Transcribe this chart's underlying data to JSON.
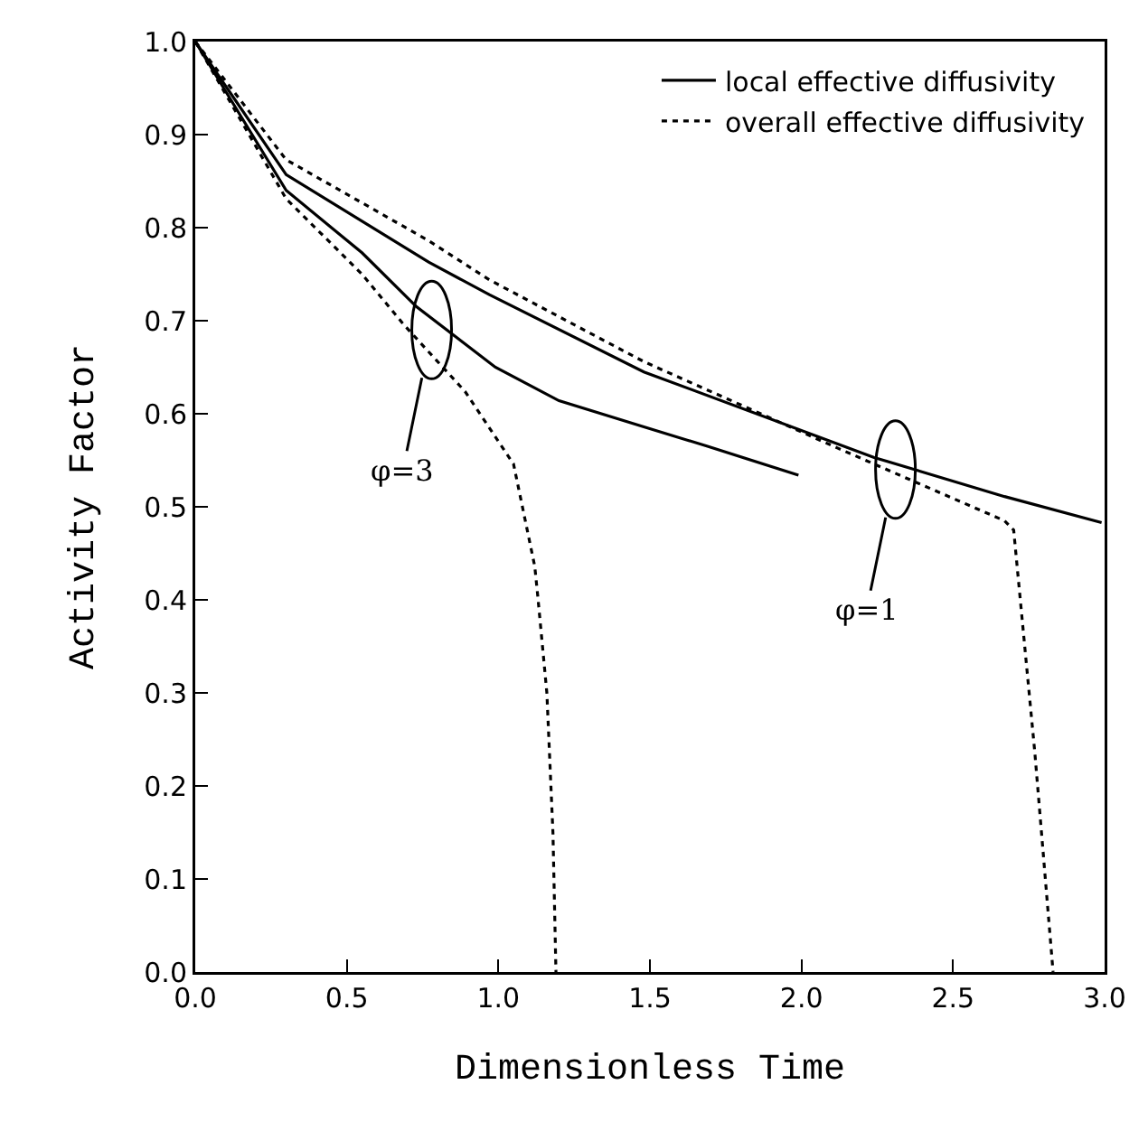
{
  "chart_data": {
    "type": "line",
    "xlabel": "Dimensionless Time",
    "ylabel": "Activity Factor",
    "xlim": [
      0,
      3
    ],
    "ylim": [
      0,
      1
    ],
    "xticks": [
      {
        "value": 0,
        "label": "0.0"
      },
      {
        "value": 0.5,
        "label": "0.5"
      },
      {
        "value": 1,
        "label": "1.0"
      },
      {
        "value": 1.5,
        "label": "1.5"
      },
      {
        "value": 2,
        "label": "2.0"
      },
      {
        "value": 2.5,
        "label": "2.5"
      },
      {
        "value": 3,
        "label": "3.0"
      }
    ],
    "yticks": [
      {
        "value": 0,
        "label": "0.0"
      },
      {
        "value": 0.1,
        "label": "0.1"
      },
      {
        "value": 0.2,
        "label": "0.2"
      },
      {
        "value": 0.3,
        "label": "0.3"
      },
      {
        "value": 0.4,
        "label": "0.4"
      },
      {
        "value": 0.5,
        "label": "0.5"
      },
      {
        "value": 0.6,
        "label": "0.6"
      },
      {
        "value": 0.7,
        "label": "0.7"
      },
      {
        "value": 0.8,
        "label": "0.8"
      },
      {
        "value": 0.9,
        "label": "0.9"
      },
      {
        "value": 1,
        "label": "1.0"
      }
    ],
    "grid": false,
    "legend": "top right",
    "marker": "none",
    "series": [
      {
        "name": "local effective diffusivity",
        "color": "#000000",
        "line_style": "solid",
        "x": [
          0,
          0.3,
          0.77,
          0.97,
          1.48,
          2.24,
          2.67,
          2.99
        ],
        "values": [
          1,
          0.857,
          0.763,
          0.728,
          0.645,
          0.553,
          0.511,
          0.483
        ]
      },
      {
        "name": "overall effective diffusivity",
        "color": "#000000",
        "line_style": "dotted",
        "x": [
          0,
          0.3,
          0.77,
          0.97,
          1.48,
          2.12,
          2.38,
          2.67,
          2.7,
          2.77,
          2.83
        ],
        "values": [
          1,
          0.873,
          0.786,
          0.744,
          0.656,
          0.563,
          0.526,
          0.485,
          0.475,
          0.235,
          0
        ]
      },
      {
        "color": "#000000",
        "line_style": "solid",
        "x": [
          0,
          0.3,
          0.55,
          0.73,
          0.99,
          1.2,
          1.48,
          1.69,
          1.99
        ],
        "values": [
          1,
          0.84,
          0.773,
          0.715,
          0.65,
          0.614,
          0.586,
          0.565,
          0.534
        ]
      },
      {
        "color": "#000000",
        "line_style": "dotted",
        "x": [
          0,
          0.3,
          0.55,
          0.69,
          0.89,
          1.05,
          1.12,
          1.13,
          1.16,
          1.18,
          1.19
        ],
        "values": [
          1,
          0.831,
          0.75,
          0.695,
          0.624,
          0.546,
          0.436,
          0.404,
          0.3,
          0.15,
          0
        ]
      }
    ],
    "annotations": [
      {
        "text": "φ=3",
        "x": 0.78,
        "y": 0.69
      },
      {
        "text": "φ=1",
        "x": 2.31,
        "y": 0.54
      }
    ]
  }
}
